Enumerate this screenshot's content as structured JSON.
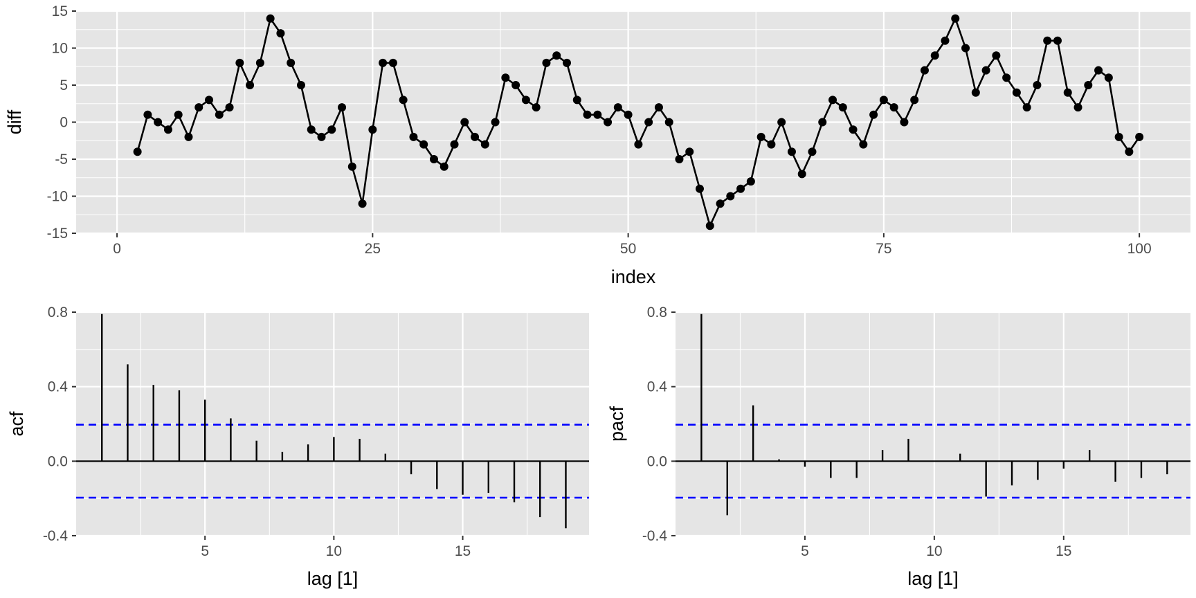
{
  "chart_data": [
    {
      "type": "line",
      "xlabel": "index",
      "ylabel": "diff",
      "xlim": [
        -4,
        105
      ],
      "ylim": [
        -15,
        15
      ],
      "xticks": [
        0,
        25,
        50,
        75,
        100
      ],
      "xtick_labels": [
        "0",
        "25",
        "50",
        "75",
        "100"
      ],
      "yticks": [
        -15,
        -10,
        -5,
        0,
        5,
        10,
        15
      ],
      "ytick_labels": [
        "-15",
        "-10",
        "-5",
        "0",
        "5",
        "10",
        "15"
      ],
      "grid": true,
      "line_color": "#000000",
      "point_color": "#000000",
      "x": [
        2,
        3,
        4,
        5,
        6,
        7,
        8,
        9,
        10,
        11,
        12,
        13,
        14,
        15,
        16,
        17,
        18,
        19,
        20,
        21,
        22,
        23,
        24,
        25,
        26,
        27,
        28,
        29,
        30,
        31,
        32,
        33,
        34,
        35,
        36,
        37,
        38,
        39,
        40,
        41,
        42,
        43,
        44,
        45,
        46,
        47,
        48,
        49,
        50,
        51,
        52,
        53,
        54,
        55,
        56,
        57,
        58,
        59,
        60,
        61,
        62,
        63,
        64,
        65,
        66,
        67,
        68,
        69,
        70,
        71,
        72,
        73,
        74,
        75,
        76,
        77,
        78,
        79,
        80,
        81,
        82,
        83,
        84,
        85,
        86,
        87,
        88,
        89,
        90,
        91,
        92,
        93,
        94,
        95,
        96,
        97,
        98,
        99,
        100
      ],
      "values": [
        -4,
        1,
        0,
        -1,
        1,
        -2,
        2,
        3,
        1,
        2,
        8,
        5,
        8,
        14,
        12,
        8,
        5,
        -1,
        -2,
        -1,
        2,
        -6,
        -11,
        -1,
        8,
        8,
        3,
        -2,
        -3,
        -5,
        -6,
        -3,
        0,
        -2,
        -3,
        0,
        6,
        5,
        3,
        2,
        8,
        9,
        8,
        3,
        1,
        1,
        0,
        2,
        1,
        -3,
        0,
        2,
        0,
        -5,
        -4,
        -9,
        -14,
        -11,
        -10,
        -9,
        -8,
        -2,
        -3,
        0,
        -4,
        -7,
        -4,
        0,
        3,
        2,
        -1,
        -3,
        1,
        3,
        2,
        0,
        3,
        7,
        9,
        11,
        14,
        10,
        4,
        7,
        9,
        6,
        4,
        2,
        5,
        11,
        11,
        4,
        2,
        5,
        7,
        6,
        -2,
        -4,
        -2
      ]
    },
    {
      "type": "bar",
      "xlabel": "lag [1]",
      "ylabel": "acf",
      "xlim": [
        0,
        19.9
      ],
      "ylim": [
        -0.4,
        0.8
      ],
      "xticks": [
        5,
        10,
        15
      ],
      "xtick_labels": [
        "5",
        "10",
        "15"
      ],
      "yticks": [
        -0.4,
        0,
        0.4,
        0.8
      ],
      "ytick_labels": [
        "-0.4",
        "0.0",
        "0.4",
        "0.8"
      ],
      "grid": true,
      "ci_bounds": [
        0.196,
        -0.196
      ],
      "ci_color": "#0000ff",
      "categories": [
        1,
        2,
        3,
        4,
        5,
        6,
        7,
        8,
        9,
        10,
        11,
        12,
        13,
        14,
        15,
        16,
        17,
        18,
        19
      ],
      "values": [
        0.79,
        0.52,
        0.41,
        0.38,
        0.33,
        0.23,
        0.11,
        0.05,
        0.09,
        0.13,
        0.12,
        0.04,
        -0.07,
        -0.15,
        -0.18,
        -0.17,
        -0.22,
        -0.3,
        -0.36
      ]
    },
    {
      "type": "bar",
      "xlabel": "lag [1]",
      "ylabel": "pacf",
      "xlim": [
        0,
        19.9
      ],
      "ylim": [
        -0.4,
        0.8
      ],
      "xticks": [
        5,
        10,
        15
      ],
      "xtick_labels": [
        "5",
        "10",
        "15"
      ],
      "yticks": [
        -0.4,
        0,
        0.4,
        0.8
      ],
      "ytick_labels": [
        "-0.4",
        "0.0",
        "0.4",
        "0.8"
      ],
      "grid": true,
      "ci_bounds": [
        0.196,
        -0.196
      ],
      "ci_color": "#0000ff",
      "categories": [
        1,
        2,
        3,
        4,
        5,
        6,
        7,
        8,
        9,
        10,
        11,
        12,
        13,
        14,
        15,
        16,
        17,
        18,
        19
      ],
      "values": [
        0.79,
        -0.29,
        0.3,
        0.01,
        -0.03,
        -0.09,
        -0.09,
        0.06,
        0.12,
        0.0,
        0.04,
        -0.19,
        -0.13,
        -0.1,
        -0.04,
        0.06,
        -0.11,
        -0.09,
        -0.07
      ]
    }
  ]
}
